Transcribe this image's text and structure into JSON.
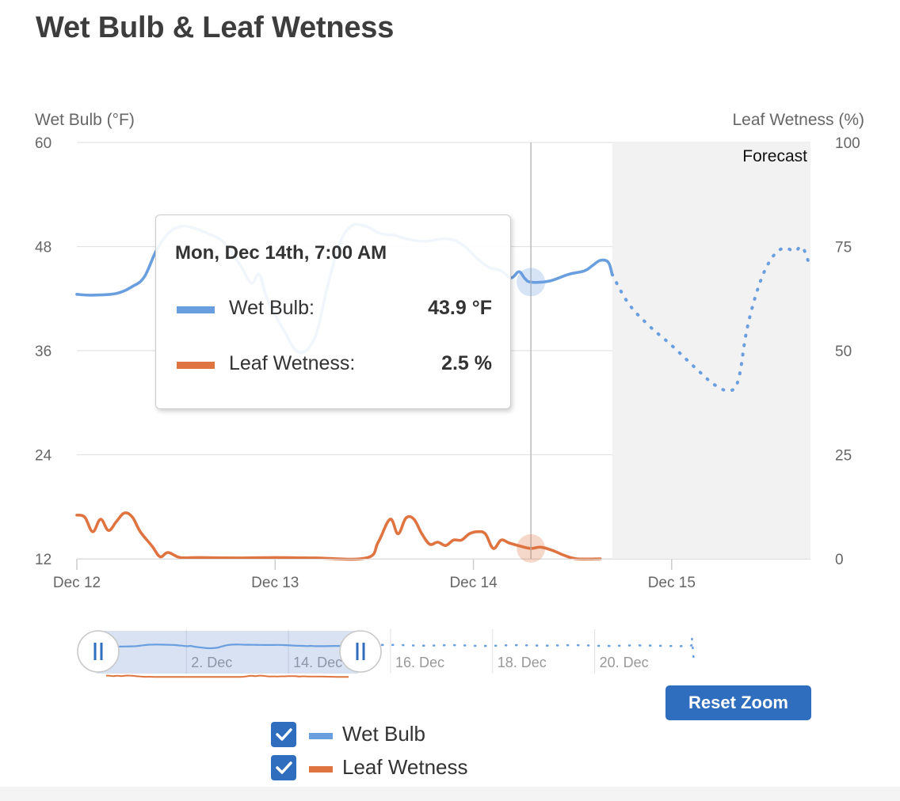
{
  "page": {
    "title": "Wet Bulb & Leaf Wetness"
  },
  "colors": {
    "wet_bulb": "#6a9fdf",
    "leaf_wetness": "#df7441",
    "forecast_band": "#f2f2f2",
    "button": "#2f6dbf"
  },
  "chart_data": {
    "type": "line",
    "title": "Wet Bulb & Leaf Wetness",
    "forecast_label": "Forecast",
    "y_left": {
      "label": "Wet Bulb (°F)",
      "min": 12,
      "max": 60,
      "ticks": [
        "60",
        "48",
        "36",
        "24",
        "12"
      ]
    },
    "y_right": {
      "label": "Leaf Wetness (%)",
      "min": 0,
      "max": 100,
      "ticks": [
        "100",
        "75",
        "50",
        "25",
        "0"
      ]
    },
    "x": {
      "unit": "days since Dec 12 00:00",
      "min": 0,
      "max": 3.7,
      "ticks": [
        {
          "v": 0,
          "label": "Dec 12"
        },
        {
          "v": 1,
          "label": "Dec 13"
        },
        {
          "v": 2,
          "label": "Dec 14"
        },
        {
          "v": 3,
          "label": "Dec 15"
        }
      ]
    },
    "forecast_start": 2.7,
    "crosshair_x": 2.29,
    "series": [
      {
        "name": "Wet Bulb",
        "axis": "left",
        "unit": "°F",
        "observed": [
          [
            0,
            42.5
          ],
          [
            0.08,
            42.4
          ],
          [
            0.2,
            42.6
          ],
          [
            0.28,
            43.4
          ],
          [
            0.34,
            44.5
          ],
          [
            0.4,
            47.5
          ],
          [
            0.46,
            49.5
          ],
          [
            0.52,
            50.3
          ],
          [
            0.58,
            50.2
          ],
          [
            0.66,
            49.5
          ],
          [
            0.74,
            48.5
          ],
          [
            0.82,
            46
          ],
          [
            0.88,
            43.8
          ],
          [
            0.92,
            44.8
          ],
          [
            0.96,
            42
          ],
          [
            1.04,
            38.5
          ],
          [
            1.12,
            35.8
          ],
          [
            1.2,
            37.5
          ],
          [
            1.26,
            43
          ],
          [
            1.32,
            48
          ],
          [
            1.38,
            50.3
          ],
          [
            1.45,
            50.4
          ],
          [
            1.53,
            49.5
          ],
          [
            1.6,
            49.3
          ],
          [
            1.68,
            48.8
          ],
          [
            1.76,
            48.6
          ],
          [
            1.86,
            48.9
          ],
          [
            1.94,
            48.3
          ],
          [
            2.02,
            46.6
          ],
          [
            2.08,
            45.6
          ],
          [
            2.14,
            45.2
          ],
          [
            2.19,
            44.4
          ],
          [
            2.23,
            45.1
          ],
          [
            2.26,
            44.3
          ],
          [
            2.29,
            43.9
          ],
          [
            2.38,
            44
          ],
          [
            2.48,
            44.8
          ],
          [
            2.56,
            45.2
          ],
          [
            2.6,
            45.8
          ],
          [
            2.64,
            46.4
          ],
          [
            2.68,
            46.2
          ],
          [
            2.7,
            44.8
          ]
        ],
        "forecast": [
          [
            2.7,
            44.8
          ],
          [
            2.78,
            41.5
          ],
          [
            2.88,
            39
          ],
          [
            3.0,
            36.6
          ],
          [
            3.12,
            34
          ],
          [
            3.22,
            32
          ],
          [
            3.3,
            31.4
          ],
          [
            3.34,
            33
          ],
          [
            3.38,
            38.5
          ],
          [
            3.44,
            43.5
          ],
          [
            3.5,
            46.5
          ],
          [
            3.56,
            47.8
          ],
          [
            3.62,
            47.5
          ],
          [
            3.66,
            47.9
          ],
          [
            3.7,
            45.5
          ]
        ]
      },
      {
        "name": "Leaf Wetness",
        "axis": "right",
        "unit": "%",
        "observed": [
          [
            0,
            10.5
          ],
          [
            0.04,
            10
          ],
          [
            0.08,
            6.5
          ],
          [
            0.12,
            9.5
          ],
          [
            0.16,
            6.8
          ],
          [
            0.2,
            9
          ],
          [
            0.24,
            11
          ],
          [
            0.28,
            10
          ],
          [
            0.32,
            6.5
          ],
          [
            0.38,
            3
          ],
          [
            0.42,
            0.5
          ],
          [
            0.46,
            1.5
          ],
          [
            0.52,
            0.3
          ],
          [
            0.6,
            0.3
          ],
          [
            0.8,
            0.2
          ],
          [
            1.0,
            0.3
          ],
          [
            1.2,
            0.2
          ],
          [
            1.46,
            0.2
          ],
          [
            1.52,
            4
          ],
          [
            1.58,
            9.5
          ],
          [
            1.62,
            6
          ],
          [
            1.66,
            9.8
          ],
          [
            1.7,
            9.5
          ],
          [
            1.74,
            6
          ],
          [
            1.78,
            3.5
          ],
          [
            1.82,
            4
          ],
          [
            1.86,
            3.2
          ],
          [
            1.9,
            4.5
          ],
          [
            1.94,
            4.5
          ],
          [
            1.98,
            6
          ],
          [
            2.02,
            6.5
          ],
          [
            2.06,
            6
          ],
          [
            2.1,
            2.5
          ],
          [
            2.14,
            4.5
          ],
          [
            2.18,
            3.8
          ],
          [
            2.24,
            3
          ],
          [
            2.29,
            2.5
          ],
          [
            2.34,
            2.8
          ],
          [
            2.4,
            2
          ],
          [
            2.46,
            0.8
          ],
          [
            2.52,
            0
          ],
          [
            2.64,
            0
          ]
        ],
        "forecast": []
      }
    ],
    "tooltip": {
      "header": "Mon, Dec 14th, 7:00 AM",
      "rows": [
        {
          "name": "Wet Bulb:",
          "value": "43.9 °F"
        },
        {
          "name": "Leaf Wetness:",
          "value": "2.5 %"
        }
      ]
    },
    "navigator": {
      "tick_labels": [
        "2. Dec",
        "14. Dec",
        "16. Dec",
        "18. Dec",
        "20. Dec"
      ],
      "range": {
        "min": 0,
        "max": 6.8
      },
      "selected": [
        0,
        2.7
      ]
    }
  },
  "controls": {
    "reset_zoom_label": "Reset Zoom"
  },
  "legend": {
    "items": [
      {
        "label": "Wet Bulb",
        "checked": true
      },
      {
        "label": "Leaf Wetness",
        "checked": true
      }
    ]
  }
}
